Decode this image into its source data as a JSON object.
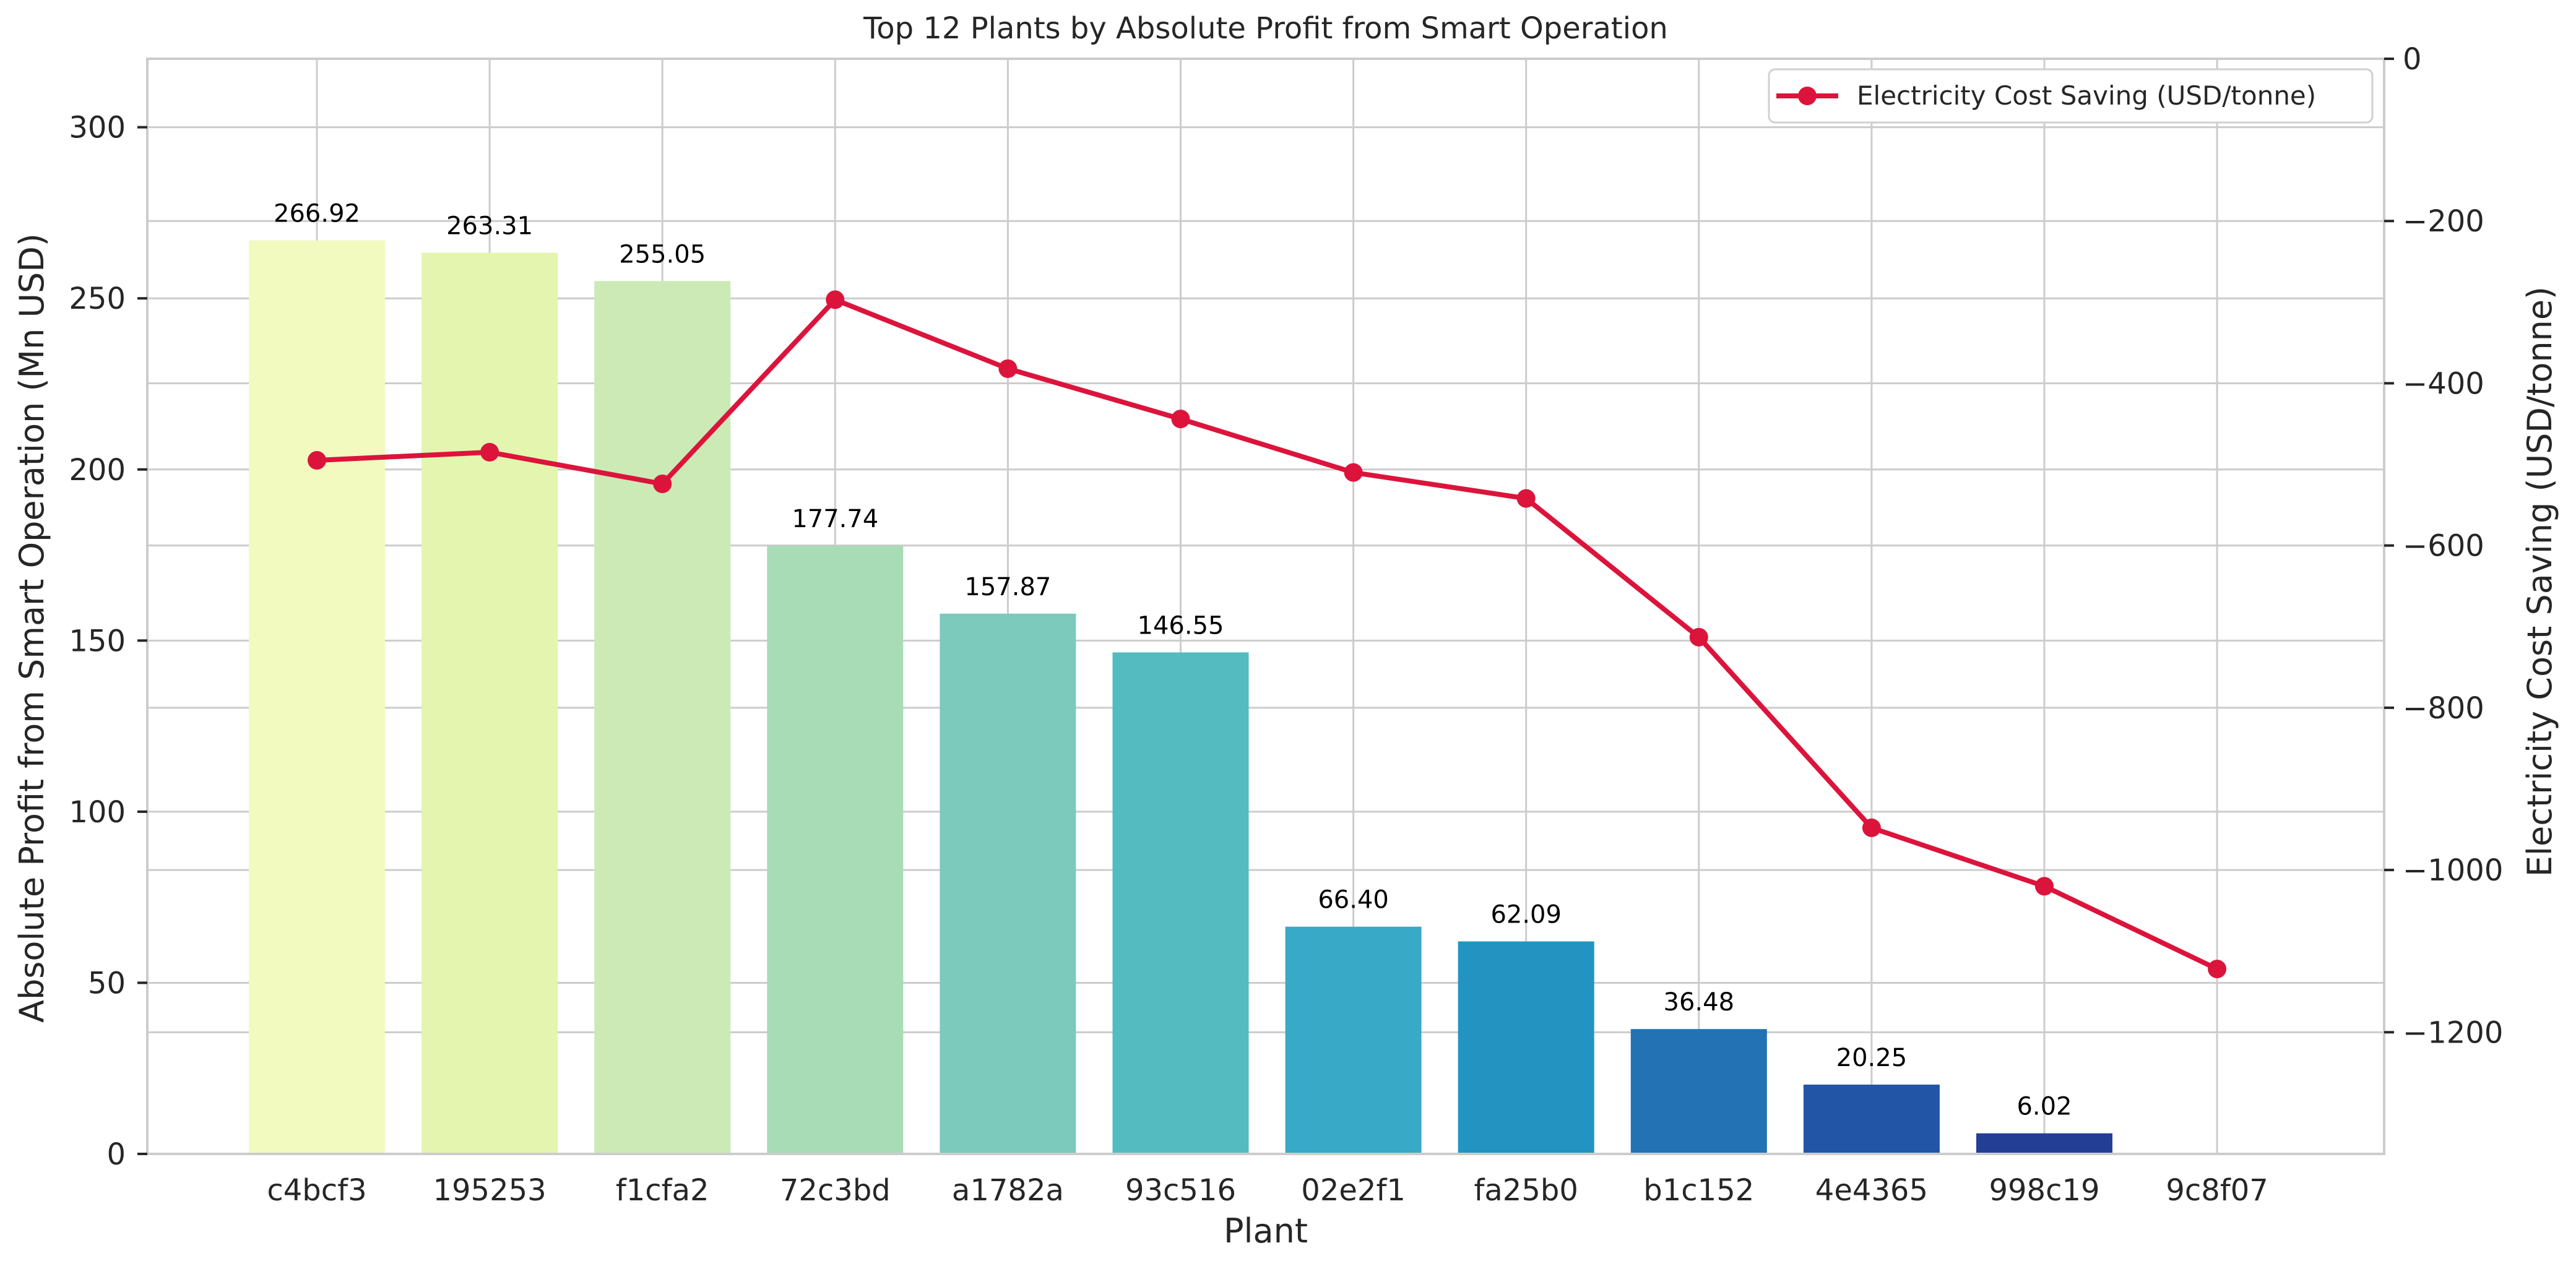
{
  "chart_data": {
    "type": "bar",
    "title": "Top 12 Plants by Absolute Profit from Smart Operation",
    "xlabel": "Plant",
    "ylabel": "Absolute Profit from Smart Operation (Mn USD)",
    "y2label": "Electricity Cost Saving (USD/tonne)",
    "categories": [
      "c4bcf3",
      "195253",
      "f1cfa2",
      "72c3bd",
      "a1782a",
      "93c516",
      "02e2f1",
      "fa25b0",
      "b1c152",
      "4e4365",
      "998c19",
      "9c8f07"
    ],
    "bar_values": [
      266.92,
      263.31,
      255.05,
      177.74,
      157.87,
      146.55,
      66.4,
      62.09,
      36.48,
      20.25,
      6.02,
      0
    ],
    "bar_labels": [
      "266.92",
      "263.31",
      "255.05",
      "177.74",
      "157.87",
      "146.55",
      "66.40",
      "62.09",
      "36.48",
      "20.25",
      "6.02",
      ""
    ],
    "bar_colors": [
      "#f2fac0",
      "#e3f5af",
      "#cceab5",
      "#a8dcb7",
      "#7bcabc",
      "#54bbc1",
      "#38a9c6",
      "#2394c1",
      "#2272b4",
      "#2355a6",
      "#233f95",
      "#20308a"
    ],
    "line_series": {
      "name": "Electricity Cost Saving (USD/tonne)",
      "values": [
        -495,
        -485,
        -524,
        -297,
        -382,
        -444,
        -510,
        -542,
        -713,
        -948,
        -1020,
        -1122
      ],
      "color": "#dc143c"
    },
    "ylim": [
      0,
      320
    ],
    "y_ticks": [
      0,
      50,
      100,
      150,
      200,
      250,
      300
    ],
    "y2lim": [
      -1350,
      0
    ],
    "y2_ticks": [
      0,
      -200,
      -400,
      -600,
      -800,
      -1000,
      -1200
    ],
    "y2_tick_labels": [
      "0",
      "−200",
      "−400",
      "−600",
      "−800",
      "−1000",
      "−1200"
    ],
    "legend_position": "top-right",
    "grid": true
  }
}
